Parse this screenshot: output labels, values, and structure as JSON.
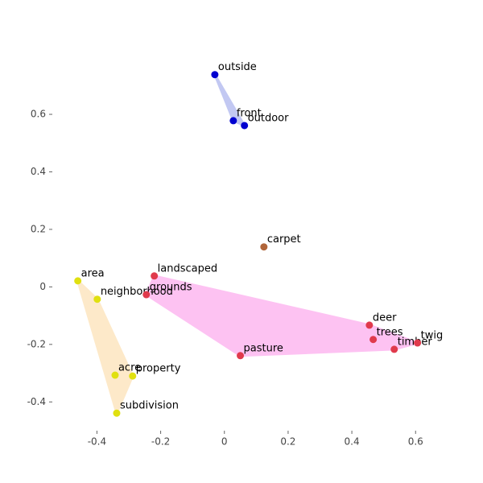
{
  "chart_data": {
    "type": "scatter",
    "xlim": [
      -0.54,
      0.66
    ],
    "ylim": [
      -0.5,
      0.88
    ],
    "xticks": [
      -0.4,
      -0.2,
      0.0,
      0.2,
      0.4,
      0.6
    ],
    "yticks": [
      -0.4,
      -0.2,
      0.0,
      0.2,
      0.4,
      0.6
    ],
    "series": [
      {
        "color": "#0000d0",
        "hull_color": "#b8bff0",
        "labels": [
          "outside",
          "front",
          "outdoor"
        ],
        "x": [
          -0.03,
          0.028,
          0.063
        ],
        "y": [
          0.738,
          0.578,
          0.561
        ]
      },
      {
        "color": "#b0653a",
        "hull_color": "#e8c8a8",
        "labels": [
          "carpet"
        ],
        "x": [
          0.124
        ],
        "y": [
          0.139
        ]
      },
      {
        "color": "#e0e010",
        "hull_color": "#fde6c0",
        "labels": [
          "area",
          "neighborhood",
          "acre",
          "property",
          "subdivision"
        ],
        "x": [
          -0.46,
          -0.399,
          -0.343,
          -0.288,
          -0.338
        ],
        "y": [
          0.021,
          -0.043,
          -0.307,
          -0.31,
          -0.439
        ]
      },
      {
        "color": "#e03a4c",
        "hull_color": "#fdb8f0",
        "labels": [
          "landscaped",
          "grounds",
          "pasture",
          "deer",
          "trees",
          "timber",
          "twig"
        ],
        "x": [
          -0.22,
          -0.245,
          0.05,
          0.455,
          0.467,
          0.533,
          0.606
        ],
        "y": [
          0.038,
          -0.027,
          -0.239,
          -0.133,
          -0.183,
          -0.217,
          -0.195
        ]
      }
    ]
  }
}
